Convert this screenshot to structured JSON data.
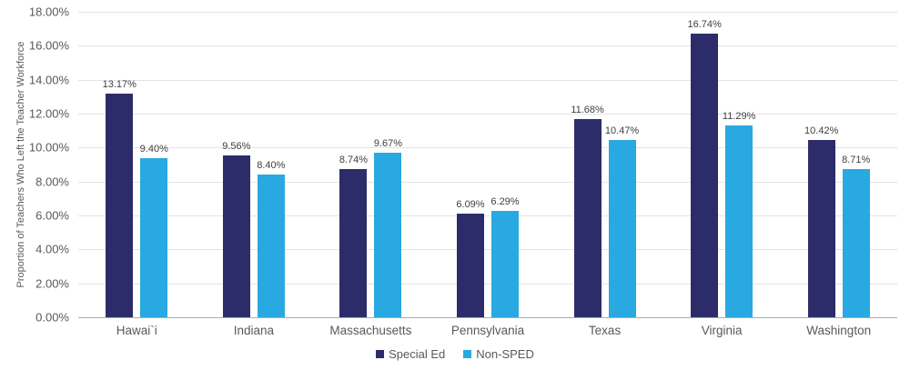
{
  "chart_data": {
    "type": "bar",
    "title": "",
    "xlabel": "",
    "ylabel": "Proportion of Teachers Who Left the Teacher Workforce",
    "categories": [
      "Hawai`i",
      "Indiana",
      "Massachusetts",
      "Pennsylvania",
      "Texas",
      "Virginia",
      "Washington"
    ],
    "series": [
      {
        "name": "Special Ed",
        "color": "#2d2c6a",
        "values": [
          13.17,
          9.56,
          8.74,
          6.09,
          11.68,
          16.74,
          10.42
        ]
      },
      {
        "name": "Non-SPED",
        "color": "#29a9e1",
        "values": [
          9.4,
          8.4,
          9.67,
          6.29,
          10.47,
          11.29,
          8.71
        ]
      }
    ],
    "data_label_suffix": "%",
    "data_label_decimals": 2,
    "ylim": [
      0,
      18
    ],
    "y_ticks": [
      "0.00%",
      "2.00%",
      "4.00%",
      "6.00%",
      "8.00%",
      "10.00%",
      "12.00%",
      "14.00%",
      "16.00%",
      "18.00%"
    ],
    "grid": true,
    "legend_position": "bottom"
  }
}
